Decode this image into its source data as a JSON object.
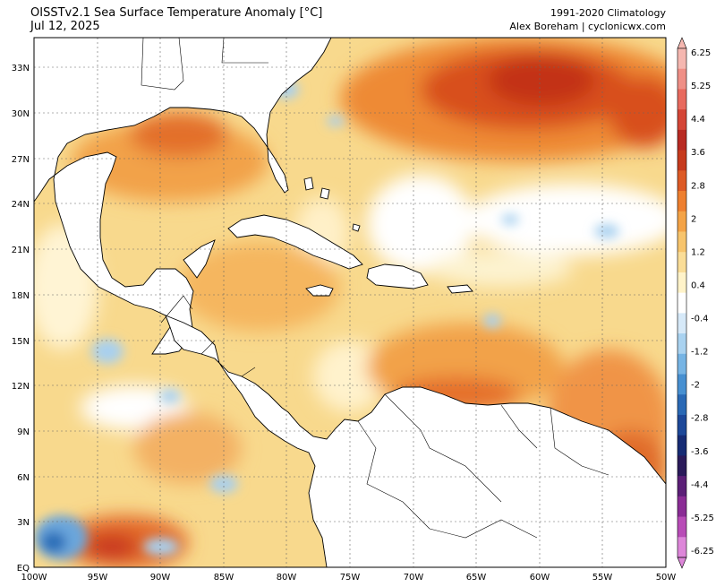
{
  "header": {
    "title": "OISSTv2.1 Sea Surface Temperature Anomaly [°C]",
    "date": "Jul 12, 2025",
    "climatology": "1991-2020 Climatology",
    "credit": "Alex Boreham | cyclonicwx.com"
  },
  "map": {
    "lon_range": [
      -100,
      -50
    ],
    "lat_range": [
      0,
      35
    ],
    "lat_ticks": [
      "EQ",
      "3N",
      "6N",
      "9N",
      "12N",
      "15N",
      "18N",
      "21N",
      "24N",
      "27N",
      "30N",
      "33N"
    ],
    "lon_ticks": [
      "100W",
      "95W",
      "90W",
      "85W",
      "80W",
      "75W",
      "70W",
      "65W",
      "60W",
      "55W",
      "50W"
    ]
  },
  "colorbar": {
    "labels": [
      "6.25",
      "5.25",
      "4.4",
      "3.6",
      "2.8",
      "2",
      "1.2",
      "0.4",
      "-0.4",
      "-1.2",
      "-2",
      "-2.8",
      "-3.6",
      "-4.4",
      "-5.25",
      "-6.25"
    ],
    "colors": [
      "#f5b7b0",
      "#ef8f86",
      "#e86a5e",
      "#d44536",
      "#b82a22",
      "#c63a1d",
      "#dd5a25",
      "#ee7f2f",
      "#f4a346",
      "#f7c46c",
      "#fadd97",
      "#fff3c9",
      "#ffffff",
      "#d6e9f8",
      "#a9d2f0",
      "#76b4e4",
      "#4790d1",
      "#2a69b5",
      "#1d4899",
      "#162b74",
      "#2a1a5a",
      "#5b1f77",
      "#8a2c95",
      "#b84cb7",
      "#dd86d9"
    ]
  }
}
